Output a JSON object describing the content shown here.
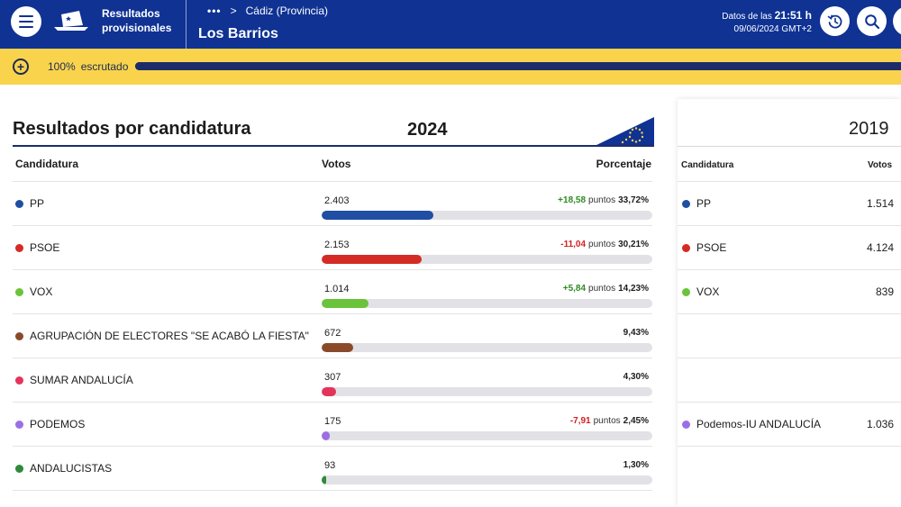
{
  "header": {
    "app_title_line1": "Resultados",
    "app_title_line2": "provisionales",
    "breadcrumb_dots": "•••",
    "breadcrumb_sep": ">",
    "breadcrumb_parent": "Cádiz (Provincia)",
    "page_title": "Los Barrios",
    "timestamp_prefix": "Datos de las",
    "timestamp_time": "21:51 h",
    "timestamp_date": "09/06/2024 GMT+2",
    "icons": [
      "menu-icon",
      "ballot-box-icon",
      "history-icon",
      "search-icon"
    ]
  },
  "progress": {
    "percent_label": "100%",
    "label": "escrutado",
    "percent": 100
  },
  "main": {
    "section_title": "Resultados por candidatura",
    "year": "2024",
    "columns": {
      "candidatura": "Candidatura",
      "votos": "Votos",
      "porcentaje": "Porcentaje"
    },
    "rows": [
      {
        "name": "PP",
        "votes": "2.403",
        "diff": "+18,58",
        "diff_type": "pos",
        "pts": "puntos",
        "pct": "33,72%",
        "share": 33.72,
        "color": "#1f4ea3"
      },
      {
        "name": "PSOE",
        "votes": "2.153",
        "diff": "-11,04",
        "diff_type": "neg",
        "pts": "puntos",
        "pct": "30,21%",
        "share": 30.21,
        "color": "#d52b25"
      },
      {
        "name": "VOX",
        "votes": "1.014",
        "diff": "+5,84",
        "diff_type": "pos",
        "pts": "puntos",
        "pct": "14,23%",
        "share": 14.23,
        "color": "#6ac33a"
      },
      {
        "name": "AGRUPACIÓN DE ELECTORES \"SE ACABÓ LA FIESTA\"",
        "votes": "672",
        "diff": "",
        "diff_type": "",
        "pts": "",
        "pct": "9,43%",
        "share": 9.43,
        "color": "#8a4a2a"
      },
      {
        "name": "SUMAR ANDALUCÍA",
        "votes": "307",
        "diff": "",
        "diff_type": "",
        "pts": "",
        "pct": "4,30%",
        "share": 4.3,
        "color": "#e3345b"
      },
      {
        "name": "PODEMOS",
        "votes": "175",
        "diff": "-7,91",
        "diff_type": "neg",
        "pts": "puntos",
        "pct": "2,45%",
        "share": 2.45,
        "color": "#9b6ee6"
      },
      {
        "name": "ANDALUCISTAS",
        "votes": "93",
        "diff": "",
        "diff_type": "",
        "pts": "",
        "pct": "1,30%",
        "share": 1.3,
        "color": "#2f8a3a"
      },
      {
        "name": "",
        "votes": "",
        "diff": "",
        "diff_type": "",
        "pts": "",
        "pct": "",
        "share": 0,
        "color": "#ffffff"
      }
    ]
  },
  "previous": {
    "year": "2019",
    "columns": {
      "candidatura": "Candidatura",
      "votos": "Votos"
    },
    "rows": [
      {
        "name": "PP",
        "votes": "1.514",
        "color": "#1f4ea3"
      },
      {
        "name": "PSOE",
        "votes": "4.124",
        "color": "#d52b25"
      },
      {
        "name": "VOX",
        "votes": "839",
        "color": "#6ac33a"
      },
      {
        "name": "",
        "votes": "",
        "color": ""
      },
      {
        "name": "",
        "votes": "",
        "color": ""
      },
      {
        "name": "Podemos-IU ANDALUCÍA",
        "votes": "1.036",
        "color": "#9b6ee6"
      },
      {
        "name": "",
        "votes": "",
        "color": ""
      }
    ]
  }
}
